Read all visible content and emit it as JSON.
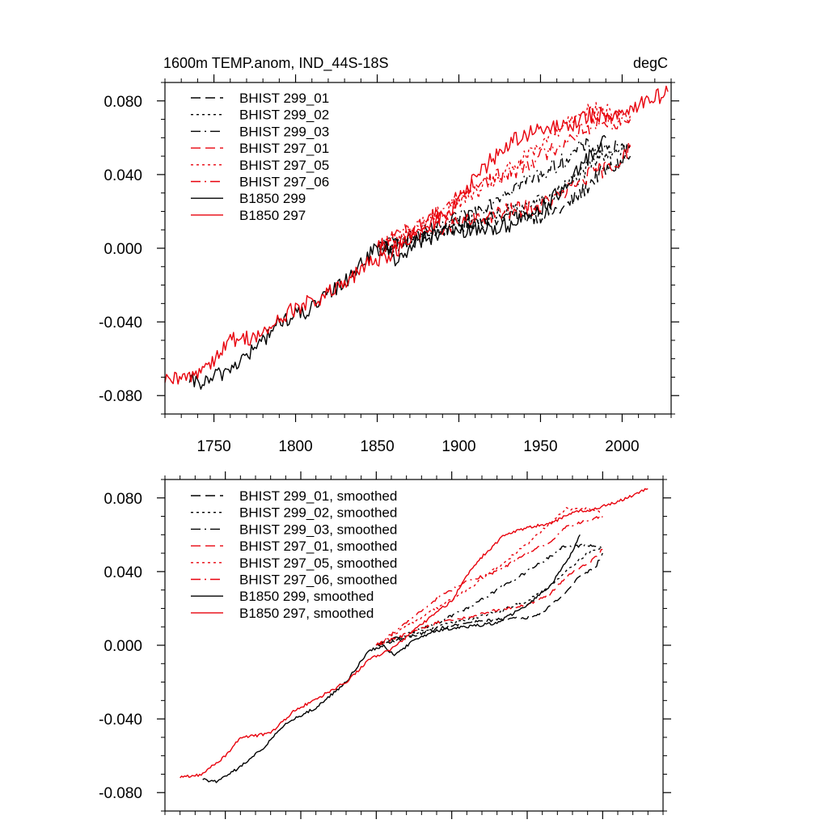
{
  "chart_data": [
    {
      "type": "line",
      "title": "1600m TEMP.anom, IND_44S-18S",
      "units": "degC",
      "xlabel": "",
      "ylabel": "",
      "xlim": [
        1720,
        2030
      ],
      "ylim": [
        -0.09,
        0.09
      ],
      "xticks": [
        1750,
        1800,
        1850,
        1900,
        1950,
        2000
      ],
      "xtick_labels": [
        "1750",
        "1800",
        "1850",
        "1900",
        "1950",
        "2000"
      ],
      "yticks": [
        -0.08,
        -0.04,
        0.0,
        0.04,
        0.08
      ],
      "ytick_labels": [
        "-0.080",
        "-0.040",
        "0.000",
        "0.040",
        "0.080"
      ],
      "legend_position": "top-left",
      "series": [
        {
          "name": "BHIST 299_01",
          "color": "#000000",
          "dash": "dashed",
          "noise": 0.0045,
          "points": [
            [
              1850,
              0.0
            ],
            [
              1870,
              0.004
            ],
            [
              1890,
              0.01
            ],
            [
              1910,
              0.015
            ],
            [
              1930,
              0.017
            ],
            [
              1950,
              0.018
            ],
            [
              1965,
              0.022
            ],
            [
              1975,
              0.03
            ],
            [
              1985,
              0.04
            ],
            [
              1995,
              0.044
            ],
            [
              2005,
              0.05
            ]
          ]
        },
        {
          "name": "BHIST 299_02",
          "color": "#000000",
          "dash": "dotted",
          "noise": 0.0045,
          "points": [
            [
              1850,
              0.0
            ],
            [
              1870,
              0.004
            ],
            [
              1890,
              0.01
            ],
            [
              1910,
              0.015
            ],
            [
              1930,
              0.02
            ],
            [
              1950,
              0.025
            ],
            [
              1960,
              0.03
            ],
            [
              1975,
              0.04
            ],
            [
              1990,
              0.052
            ],
            [
              2005,
              0.055
            ]
          ]
        },
        {
          "name": "BHIST 299_03",
          "color": "#000000",
          "dash": "dashdot",
          "noise": 0.0045,
          "points": [
            [
              1850,
              0.0
            ],
            [
              1870,
              0.006
            ],
            [
              1890,
              0.012
            ],
            [
              1910,
              0.02
            ],
            [
              1930,
              0.032
            ],
            [
              1950,
              0.04
            ],
            [
              1965,
              0.048
            ],
            [
              1975,
              0.055
            ],
            [
              1990,
              0.055
            ],
            [
              2005,
              0.053
            ]
          ]
        },
        {
          "name": "BHIST 297_01",
          "color": "#e8000b",
          "dash": "dashed",
          "noise": 0.0045,
          "points": [
            [
              1850,
              0.0
            ],
            [
              1870,
              0.006
            ],
            [
              1890,
              0.012
            ],
            [
              1910,
              0.015
            ],
            [
              1930,
              0.02
            ],
            [
              1950,
              0.023
            ],
            [
              1965,
              0.03
            ],
            [
              1980,
              0.04
            ],
            [
              1995,
              0.045
            ],
            [
              2005,
              0.055
            ]
          ]
        },
        {
          "name": "BHIST 297_05",
          "color": "#e8000b",
          "dash": "dotted",
          "noise": 0.0045,
          "points": [
            [
              1850,
              0.0
            ],
            [
              1870,
              0.01
            ],
            [
              1890,
              0.02
            ],
            [
              1910,
              0.03
            ],
            [
              1930,
              0.042
            ],
            [
              1950,
              0.055
            ],
            [
              1965,
              0.068
            ],
            [
              1975,
              0.076
            ],
            [
              1990,
              0.074
            ],
            [
              2005,
              0.072
            ]
          ]
        },
        {
          "name": "BHIST 297_06",
          "color": "#e8000b",
          "dash": "dashdot",
          "noise": 0.0045,
          "points": [
            [
              1850,
              0.0
            ],
            [
              1870,
              0.01
            ],
            [
              1890,
              0.022
            ],
            [
              1910,
              0.035
            ],
            [
              1930,
              0.04
            ],
            [
              1950,
              0.05
            ],
            [
              1965,
              0.058
            ],
            [
              1975,
              0.065
            ],
            [
              1990,
              0.068
            ],
            [
              2005,
              0.07
            ]
          ]
        },
        {
          "name": "B1850 299",
          "color": "#000000",
          "dash": "solid",
          "noise": 0.0045,
          "points": [
            [
              1735,
              -0.073
            ],
            [
              1745,
              -0.073
            ],
            [
              1760,
              -0.065
            ],
            [
              1775,
              -0.055
            ],
            [
              1790,
              -0.04
            ],
            [
              1810,
              -0.033
            ],
            [
              1830,
              -0.018
            ],
            [
              1845,
              -0.003
            ],
            [
              1855,
              0.0
            ],
            [
              1862,
              -0.006
            ],
            [
              1875,
              0.004
            ],
            [
              1890,
              0.008
            ],
            [
              1910,
              0.01
            ],
            [
              1930,
              0.012
            ],
            [
              1950,
              0.022
            ],
            [
              1965,
              0.032
            ],
            [
              1980,
              0.05
            ],
            [
              1990,
              0.06
            ]
          ]
        },
        {
          "name": "B1850 297",
          "color": "#e8000b",
          "dash": "solid",
          "noise": 0.0045,
          "points": [
            [
              1720,
              -0.073
            ],
            [
              1735,
              -0.07
            ],
            [
              1750,
              -0.06
            ],
            [
              1760,
              -0.05
            ],
            [
              1780,
              -0.047
            ],
            [
              1795,
              -0.035
            ],
            [
              1815,
              -0.027
            ],
            [
              1830,
              -0.02
            ],
            [
              1845,
              -0.008
            ],
            [
              1860,
              -0.002
            ],
            [
              1875,
              0.008
            ],
            [
              1890,
              0.018
            ],
            [
              1900,
              0.025
            ],
            [
              1910,
              0.038
            ],
            [
              1920,
              0.048
            ],
            [
              1935,
              0.06
            ],
            [
              1950,
              0.064
            ],
            [
              1965,
              0.066
            ],
            [
              1980,
              0.072
            ],
            [
              1995,
              0.073
            ],
            [
              2010,
              0.078
            ],
            [
              2028,
              0.085
            ]
          ]
        }
      ]
    },
    {
      "type": "line",
      "title": "",
      "units": "",
      "xlabel": "",
      "ylabel": "",
      "xlim": [
        1710,
        2040
      ],
      "ylim": [
        -0.09,
        0.09
      ],
      "xticks": [
        1750,
        1800,
        1850,
        1900,
        1950,
        2000
      ],
      "xtick_labels": [],
      "yticks": [
        -0.08,
        -0.04,
        0.0,
        0.04,
        0.08
      ],
      "ytick_labels": [
        "-0.080",
        "-0.040",
        "0.000",
        "0.040",
        "0.080"
      ],
      "legend_position": "top-left",
      "series": [
        {
          "name": "BHIST 299_01, smoothed",
          "color": "#000000",
          "dash": "dashed",
          "noise": 0.0008,
          "points": [
            [
              1850,
              0.0
            ],
            [
              1870,
              0.004
            ],
            [
              1890,
              0.009
            ],
            [
              1910,
              0.012
            ],
            [
              1930,
              0.014
            ],
            [
              1950,
              0.015
            ],
            [
              1960,
              0.018
            ],
            [
              1975,
              0.028
            ],
            [
              1985,
              0.038
            ],
            [
              1995,
              0.042
            ],
            [
              2000,
              0.05
            ]
          ]
        },
        {
          "name": "BHIST 299_02, smoothed",
          "color": "#000000",
          "dash": "dotted",
          "noise": 0.0008,
          "points": [
            [
              1850,
              0.0
            ],
            [
              1870,
              0.005
            ],
            [
              1890,
              0.01
            ],
            [
              1910,
              0.014
            ],
            [
              1930,
              0.018
            ],
            [
              1950,
              0.024
            ],
            [
              1965,
              0.032
            ],
            [
              1975,
              0.04
            ],
            [
              1990,
              0.05
            ],
            [
              2000,
              0.053
            ]
          ]
        },
        {
          "name": "BHIST 299_03, smoothed",
          "color": "#000000",
          "dash": "dashdot",
          "noise": 0.0008,
          "points": [
            [
              1850,
              0.0
            ],
            [
              1870,
              0.006
            ],
            [
              1890,
              0.012
            ],
            [
              1910,
              0.02
            ],
            [
              1930,
              0.03
            ],
            [
              1950,
              0.04
            ],
            [
              1965,
              0.048
            ],
            [
              1975,
              0.054
            ],
            [
              1990,
              0.054
            ],
            [
              2000,
              0.053
            ]
          ]
        },
        {
          "name": "BHIST 297_01, smoothed",
          "color": "#e8000b",
          "dash": "dashed",
          "noise": 0.0008,
          "points": [
            [
              1850,
              0.0
            ],
            [
              1870,
              0.006
            ],
            [
              1890,
              0.012
            ],
            [
              1910,
              0.015
            ],
            [
              1930,
              0.019
            ],
            [
              1950,
              0.022
            ],
            [
              1965,
              0.028
            ],
            [
              1980,
              0.04
            ],
            [
              1990,
              0.044
            ],
            [
              2000,
              0.052
            ]
          ]
        },
        {
          "name": "BHIST 297_05, smoothed",
          "color": "#e8000b",
          "dash": "dotted",
          "noise": 0.0008,
          "points": [
            [
              1850,
              0.0
            ],
            [
              1870,
              0.01
            ],
            [
              1890,
              0.02
            ],
            [
              1910,
              0.03
            ],
            [
              1930,
              0.042
            ],
            [
              1950,
              0.055
            ],
            [
              1965,
              0.066
            ],
            [
              1975,
              0.074
            ],
            [
              1990,
              0.074
            ],
            [
              2000,
              0.072
            ]
          ]
        },
        {
          "name": "BHIST 297_06, smoothed",
          "color": "#e8000b",
          "dash": "dashdot",
          "noise": 0.0008,
          "points": [
            [
              1850,
              0.0
            ],
            [
              1870,
              0.012
            ],
            [
              1890,
              0.025
            ],
            [
              1910,
              0.035
            ],
            [
              1930,
              0.04
            ],
            [
              1950,
              0.05
            ],
            [
              1965,
              0.056
            ],
            [
              1975,
              0.064
            ],
            [
              1990,
              0.068
            ],
            [
              2000,
              0.07
            ]
          ]
        },
        {
          "name": "B1850 299, smoothed",
          "color": "#000000",
          "dash": "solid",
          "noise": 0.0008,
          "points": [
            [
              1735,
              -0.073
            ],
            [
              1745,
              -0.074
            ],
            [
              1760,
              -0.066
            ],
            [
              1775,
              -0.056
            ],
            [
              1790,
              -0.042
            ],
            [
              1810,
              -0.034
            ],
            [
              1830,
              -0.02
            ],
            [
              1845,
              -0.003
            ],
            [
              1855,
              0.0
            ],
            [
              1862,
              -0.006
            ],
            [
              1875,
              0.003
            ],
            [
              1890,
              0.008
            ],
            [
              1910,
              0.01
            ],
            [
              1930,
              0.012
            ],
            [
              1950,
              0.022
            ],
            [
              1965,
              0.032
            ],
            [
              1978,
              0.048
            ],
            [
              1985,
              0.06
            ]
          ]
        },
        {
          "name": "B1850 297, smoothed",
          "color": "#e8000b",
          "dash": "solid",
          "noise": 0.0008,
          "points": [
            [
              1720,
              -0.072
            ],
            [
              1735,
              -0.07
            ],
            [
              1750,
              -0.06
            ],
            [
              1760,
              -0.05
            ],
            [
              1780,
              -0.048
            ],
            [
              1795,
              -0.036
            ],
            [
              1815,
              -0.027
            ],
            [
              1830,
              -0.02
            ],
            [
              1845,
              -0.008
            ],
            [
              1860,
              -0.002
            ],
            [
              1875,
              0.008
            ],
            [
              1890,
              0.018
            ],
            [
              1900,
              0.024
            ],
            [
              1910,
              0.038
            ],
            [
              1920,
              0.048
            ],
            [
              1935,
              0.06
            ],
            [
              1950,
              0.064
            ],
            [
              1965,
              0.066
            ],
            [
              1980,
              0.072
            ],
            [
              1995,
              0.074
            ],
            [
              2010,
              0.078
            ],
            [
              2030,
              0.085
            ]
          ]
        }
      ]
    }
  ]
}
